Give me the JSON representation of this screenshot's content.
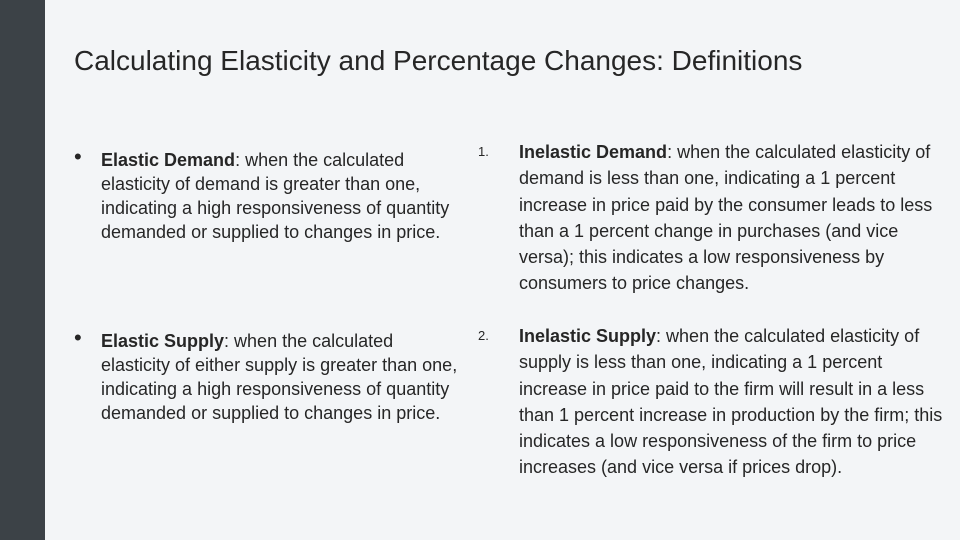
{
  "slide": {
    "title": "Calculating Elasticity and Percentage Changes: Definitions"
  },
  "left_column": {
    "bullet_symbol": "•",
    "items": [
      {
        "term": "Elastic Demand",
        "definition": ": when the calculated elasticity of demand is greater than one, indicating a high responsiveness of quantity demanded or supplied to changes in price."
      },
      {
        "term": "Elastic Supply",
        "definition": ": when the calculated elasticity of either supply is greater than one, indicating a high responsiveness of quantity demanded or supplied to changes in price."
      }
    ]
  },
  "right_column": {
    "items": [
      {
        "marker": "1.",
        "term": "Inelastic Demand",
        "definition": ": when the calculated elasticity of demand is less than one, indicating a 1 percent increase in price paid by the consumer leads to less than a 1 percent change in purchases (and vice versa); this indicates a low responsiveness by consumers to price changes."
      },
      {
        "marker": "2.",
        "term": "Inelastic Supply",
        "definition": ": when the calculated elasticity of supply is less than one, indicating a 1 percent increase in price paid to the firm will result in a less than 1 percent increase in production by the firm; this indicates a low responsiveness of the firm to price increases (and vice versa if prices drop)."
      }
    ]
  }
}
